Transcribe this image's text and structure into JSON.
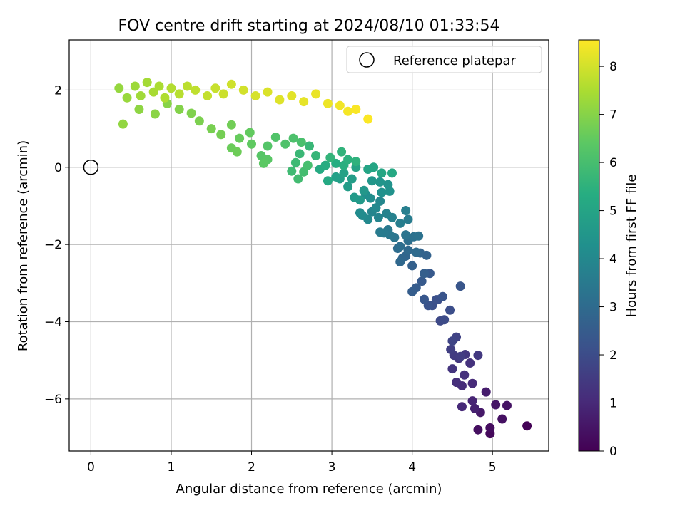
{
  "chart_data": {
    "type": "scatter",
    "title": "FOV centre drift starting at 2024/08/10 01:33:54",
    "xlabel": "Angular distance from reference (arcmin)",
    "ylabel": "Rotation from reference (arcmin)",
    "xlim": [
      -0.27,
      5.7
    ],
    "ylim": [
      -7.35,
      3.3
    ],
    "xticks": [
      0,
      1,
      2,
      3,
      4,
      5
    ],
    "xtick_labels": [
      "0",
      "1",
      "2",
      "3",
      "4",
      "5"
    ],
    "yticks": [
      -6,
      -4,
      -2,
      0,
      2
    ],
    "ytick_labels": [
      "−6",
      "−4",
      "−2",
      "0",
      "2"
    ],
    "grid": true,
    "legend": {
      "position": "top-right",
      "entries": [
        {
          "label": "Reference platepar",
          "marker": "open-circle"
        }
      ]
    },
    "reference_point": {
      "x": 0,
      "y": 0,
      "label": "Reference platepar"
    },
    "colorbar": {
      "label": "Hours from first FF file",
      "colormap": "viridis",
      "range": [
        0,
        8.55
      ],
      "ticks": [
        0,
        1,
        2,
        3,
        4,
        5,
        6,
        7,
        8
      ],
      "tick_labels": [
        "0",
        "1",
        "2",
        "3",
        "4",
        "5",
        "6",
        "7",
        "8"
      ]
    },
    "series": [
      {
        "color_value_unit": "hours",
        "points": [
          [
            5.43,
            -6.7,
            0.05
          ],
          [
            4.97,
            -6.9,
            0.2
          ],
          [
            4.97,
            -6.75,
            0.3
          ],
          [
            4.82,
            -6.8,
            0.35
          ],
          [
            5.12,
            -6.52,
            0.4
          ],
          [
            5.18,
            -6.17,
            0.45
          ],
          [
            5.04,
            -6.15,
            0.5
          ],
          [
            4.85,
            -6.35,
            0.6
          ],
          [
            4.92,
            -5.82,
            0.7
          ],
          [
            4.78,
            -6.25,
            0.8
          ],
          [
            4.75,
            -6.05,
            0.9
          ],
          [
            4.62,
            -6.2,
            1.0
          ],
          [
            4.75,
            -5.6,
            1.05
          ],
          [
            4.62,
            -5.66,
            1.1
          ],
          [
            4.55,
            -5.57,
            1.15
          ],
          [
            4.65,
            -5.38,
            1.2
          ],
          [
            4.72,
            -5.07,
            1.25
          ],
          [
            4.5,
            -5.22,
            1.3
          ],
          [
            4.58,
            -4.95,
            1.35
          ],
          [
            4.66,
            -4.85,
            1.4
          ],
          [
            4.82,
            -4.87,
            1.45
          ],
          [
            4.52,
            -4.87,
            1.5
          ],
          [
            4.6,
            -4.9,
            1.55
          ],
          [
            4.48,
            -4.72,
            1.6
          ],
          [
            4.55,
            -4.4,
            1.7
          ],
          [
            4.5,
            -4.5,
            1.75
          ],
          [
            4.35,
            -3.98,
            1.9
          ],
          [
            4.4,
            -3.95,
            1.95
          ],
          [
            4.32,
            -3.43,
            2.0
          ],
          [
            4.47,
            -3.7,
            2.05
          ],
          [
            4.25,
            -3.58,
            2.1
          ],
          [
            4.3,
            -3.43,
            2.15
          ],
          [
            4.2,
            -3.58,
            2.2
          ],
          [
            4.38,
            -3.35,
            2.25
          ],
          [
            4.6,
            -3.08,
            2.3
          ],
          [
            4.15,
            -3.42,
            2.35
          ],
          [
            4.22,
            -2.75,
            2.4
          ],
          [
            4.12,
            -2.95,
            2.45
          ],
          [
            4.05,
            -3.12,
            2.5
          ],
          [
            4.0,
            -3.22,
            2.55
          ],
          [
            4.15,
            -2.75,
            2.6
          ],
          [
            4.0,
            -2.55,
            2.65
          ],
          [
            4.18,
            -2.28,
            2.7
          ],
          [
            4.1,
            -2.22,
            2.75
          ],
          [
            3.92,
            -2.3,
            2.8
          ],
          [
            3.88,
            -2.35,
            2.85
          ],
          [
            3.85,
            -2.45,
            2.9
          ],
          [
            3.95,
            -2.15,
            2.95
          ],
          [
            4.05,
            -2.2,
            3.0
          ],
          [
            3.82,
            -2.1,
            3.05
          ],
          [
            3.85,
            -2.05,
            3.1
          ],
          [
            3.95,
            -1.9,
            3.15
          ],
          [
            4.02,
            -1.8,
            3.2
          ],
          [
            4.08,
            -1.78,
            3.25
          ],
          [
            3.92,
            -1.75,
            3.3
          ],
          [
            3.78,
            -1.82,
            3.35
          ],
          [
            3.72,
            -1.75,
            3.4
          ],
          [
            3.7,
            -1.62,
            3.45
          ],
          [
            3.65,
            -1.7,
            3.5
          ],
          [
            3.6,
            -1.68,
            3.55
          ],
          [
            3.95,
            -1.35,
            3.6
          ],
          [
            3.85,
            -1.45,
            3.65
          ],
          [
            3.92,
            -1.12,
            3.7
          ],
          [
            3.75,
            -1.3,
            3.75
          ],
          [
            3.68,
            -1.2,
            3.8
          ],
          [
            3.58,
            -1.3,
            3.85
          ],
          [
            3.5,
            -1.15,
            3.9
          ],
          [
            3.6,
            -0.88,
            3.95
          ],
          [
            3.55,
            -1.05,
            4.0
          ],
          [
            3.45,
            -1.35,
            4.05
          ],
          [
            3.38,
            -1.25,
            4.1
          ],
          [
            3.35,
            -1.18,
            4.15
          ],
          [
            3.48,
            -0.8,
            4.2
          ],
          [
            3.42,
            -0.7,
            4.25
          ],
          [
            3.62,
            -0.65,
            4.3
          ],
          [
            3.72,
            -0.62,
            4.35
          ],
          [
            3.7,
            -0.45,
            4.4
          ],
          [
            3.6,
            -0.38,
            4.45
          ],
          [
            3.5,
            -0.35,
            4.5
          ],
          [
            3.4,
            -0.6,
            4.55
          ],
          [
            3.35,
            -0.85,
            4.6
          ],
          [
            3.28,
            -0.78,
            4.65
          ],
          [
            3.2,
            -0.5,
            4.7
          ],
          [
            3.25,
            -0.3,
            4.75
          ],
          [
            3.1,
            -0.3,
            4.8
          ],
          [
            3.05,
            -0.25,
            4.85
          ],
          [
            3.15,
            -0.15,
            4.9
          ],
          [
            3.3,
            0.0,
            4.95
          ],
          [
            3.45,
            -0.05,
            5.0
          ],
          [
            3.52,
            0.0,
            5.05
          ],
          [
            3.62,
            -0.15,
            5.1
          ],
          [
            3.75,
            -0.15,
            5.15
          ],
          [
            2.95,
            -0.35,
            5.2
          ],
          [
            2.85,
            -0.05,
            5.25
          ],
          [
            2.92,
            0.05,
            5.3
          ],
          [
            3.05,
            0.1,
            5.35
          ],
          [
            3.15,
            0.05,
            5.4
          ],
          [
            3.2,
            0.2,
            5.45
          ],
          [
            3.3,
            0.15,
            5.5
          ],
          [
            3.12,
            0.4,
            5.55
          ],
          [
            2.98,
            0.25,
            5.6
          ],
          [
            2.8,
            0.3,
            5.65
          ],
          [
            2.72,
            0.55,
            5.7
          ],
          [
            2.6,
            0.35,
            5.75
          ],
          [
            2.55,
            0.12,
            5.8
          ],
          [
            2.5,
            -0.1,
            5.85
          ],
          [
            2.58,
            -0.3,
            5.9
          ],
          [
            2.65,
            -0.12,
            5.95
          ],
          [
            2.7,
            0.05,
            6.0
          ],
          [
            2.62,
            0.65,
            6.05
          ],
          [
            2.52,
            0.75,
            6.1
          ],
          [
            2.42,
            0.6,
            6.15
          ],
          [
            2.3,
            0.78,
            6.2
          ],
          [
            2.2,
            0.55,
            6.25
          ],
          [
            2.12,
            0.3,
            6.3
          ],
          [
            2.2,
            0.2,
            6.35
          ],
          [
            2.15,
            0.1,
            6.4
          ],
          [
            2.0,
            0.6,
            6.45
          ],
          [
            1.98,
            0.9,
            6.5
          ],
          [
            1.85,
            0.75,
            6.55
          ],
          [
            1.75,
            0.5,
            6.6
          ],
          [
            1.82,
            0.4,
            6.65
          ],
          [
            1.75,
            1.1,
            6.7
          ],
          [
            1.62,
            0.85,
            6.75
          ],
          [
            1.5,
            1.0,
            6.8
          ],
          [
            1.35,
            1.2,
            6.85
          ],
          [
            1.25,
            1.4,
            6.9
          ],
          [
            1.1,
            1.5,
            6.95
          ],
          [
            0.95,
            1.65,
            7.0
          ],
          [
            0.8,
            1.38,
            7.05
          ],
          [
            0.6,
            1.5,
            7.1
          ],
          [
            0.4,
            1.12,
            7.15
          ],
          [
            0.35,
            2.05,
            7.2
          ],
          [
            0.45,
            1.8,
            7.25
          ],
          [
            0.55,
            2.1,
            7.3
          ],
          [
            0.62,
            1.85,
            7.35
          ],
          [
            0.7,
            2.2,
            7.4
          ],
          [
            0.78,
            1.95,
            7.45
          ],
          [
            0.85,
            2.1,
            7.5
          ],
          [
            0.92,
            1.8,
            7.55
          ],
          [
            1.0,
            2.05,
            7.6
          ],
          [
            1.1,
            1.9,
            7.65
          ],
          [
            1.2,
            2.1,
            7.7
          ],
          [
            1.3,
            2.0,
            7.75
          ],
          [
            1.45,
            1.85,
            7.8
          ],
          [
            1.55,
            2.05,
            7.85
          ],
          [
            1.65,
            1.9,
            7.9
          ],
          [
            1.75,
            2.15,
            7.95
          ],
          [
            1.9,
            2.0,
            8.0
          ],
          [
            2.05,
            1.85,
            8.05
          ],
          [
            2.2,
            1.95,
            8.1
          ],
          [
            2.35,
            1.75,
            8.15
          ],
          [
            2.5,
            1.85,
            8.2
          ],
          [
            2.65,
            1.7,
            8.25
          ],
          [
            2.8,
            1.9,
            8.3
          ],
          [
            2.95,
            1.65,
            8.35
          ],
          [
            3.1,
            1.6,
            8.4
          ],
          [
            3.2,
            1.45,
            8.45
          ],
          [
            3.3,
            1.5,
            8.5
          ],
          [
            3.45,
            1.25,
            8.53
          ]
        ]
      }
    ]
  }
}
